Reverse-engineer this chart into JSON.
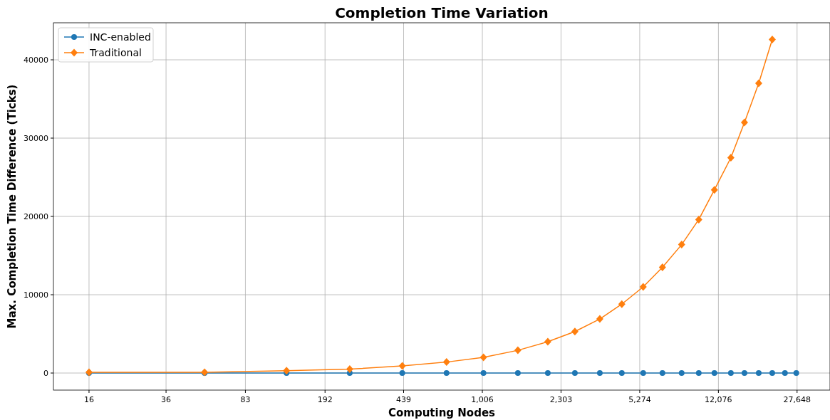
{
  "chart_data": {
    "type": "line",
    "title": "Completion Time Variation",
    "xlabel": "Computing Nodes",
    "ylabel": "Max. Completion Time Difference (Ticks)",
    "log": "x",
    "grid": true,
    "legend": "top left",
    "xlim": [
      11,
      39100
    ],
    "ylim": [
      -2180,
      44730
    ],
    "xticks": [
      16,
      36,
      83,
      192,
      439,
      {
        "value": 1006,
        "label": "1,006"
      },
      {
        "value": 2303,
        "label": "2,303"
      },
      {
        "value": 5274,
        "label": "5,274"
      },
      {
        "value": 12076,
        "label": "12,076"
      },
      {
        "value": 27648,
        "label": "27,648"
      }
    ],
    "yticks": [
      0,
      10000,
      20000,
      30000,
      40000
    ],
    "series": [
      {
        "name": "INC-enabled",
        "color": "#1f77b4",
        "marker": "circle",
        "x": [
          16,
          54,
          128,
          249,
          433,
          690,
          1018,
          1462,
          2004,
          2665,
          3465,
          4368,
          5470,
          6700,
          8200,
          9820,
          11580,
          13770,
          15890,
          18460,
          21290,
          24330,
          27420
        ],
        "values": [
          0,
          0,
          0,
          0,
          0,
          0,
          0,
          0,
          0,
          0,
          0,
          0,
          0,
          0,
          0,
          0,
          0,
          0,
          0,
          0,
          0,
          0,
          0
        ]
      },
      {
        "name": "Traditional",
        "color": "#ff7f0e",
        "marker": "diamond",
        "x": [
          16,
          54,
          128,
          249,
          433,
          690,
          1018,
          1462,
          2004,
          2665,
          3465,
          4368,
          5470,
          6700,
          8200,
          9820,
          11580,
          13770,
          15890,
          18460,
          21290
        ],
        "values": [
          100,
          100,
          300,
          500,
          900,
          1400,
          2000,
          2900,
          4000,
          5300,
          6900,
          8800,
          11000,
          13500,
          16400,
          19600,
          23400,
          27500,
          32000,
          37000,
          42600
        ]
      }
    ]
  }
}
